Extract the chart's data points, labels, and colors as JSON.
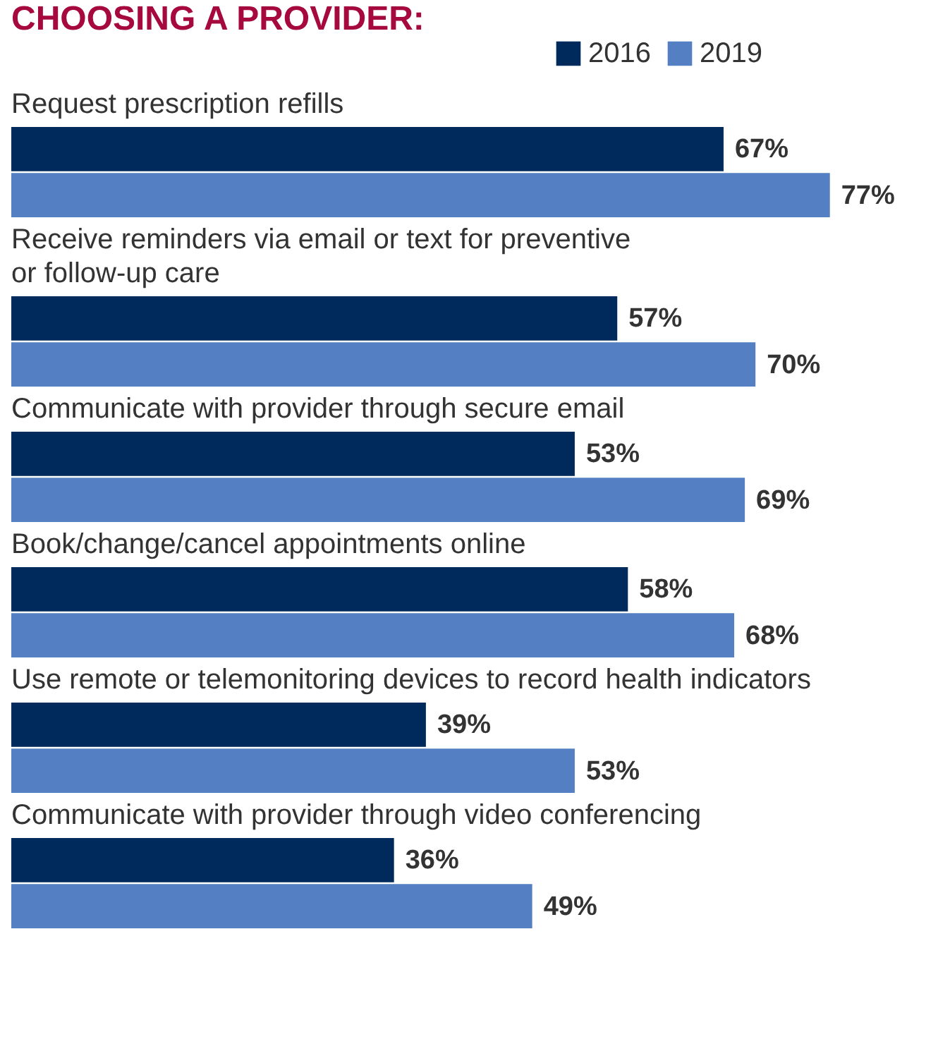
{
  "chart_data": {
    "type": "bar",
    "orientation": "horizontal",
    "title": "CHOOSING A PROVIDER:",
    "categories": [
      "Request prescription refills",
      "Receive reminders via email or text for preventive\nor follow-up care",
      "Communicate with provider through secure email",
      "Book/change/cancel appointments online",
      "Use remote or telemonitoring devices to record health indicators",
      "Communicate with provider through video conferencing"
    ],
    "series": [
      {
        "name": "2016",
        "color": "#002a5c",
        "values": [
          67,
          57,
          53,
          58,
          39,
          36
        ],
        "value_labels": [
          "67%",
          "57%",
          "53%",
          "58%",
          "39%",
          "36%"
        ]
      },
      {
        "name": "2019",
        "color": "#5480c3",
        "values": [
          77,
          70,
          69,
          68,
          53,
          49
        ],
        "value_labels": [
          "77%",
          "70%",
          "69%",
          "68%",
          "53%",
          "49%"
        ]
      }
    ],
    "legend": "top right"
  }
}
